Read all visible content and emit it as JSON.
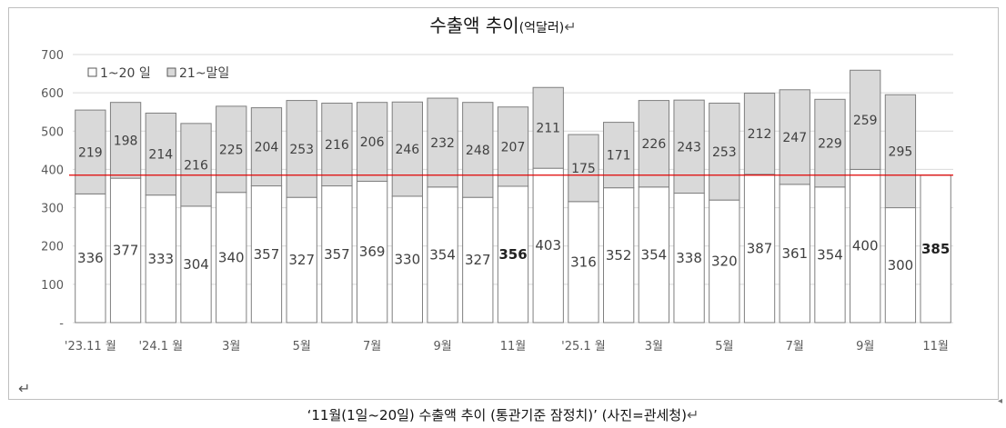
{
  "title": "수출액 추이",
  "title_unit": "(억달러)",
  "caption": "‘11월(1일~20일) 수출액 추이 (통관기준 잠정치)’ (사진=관세청)",
  "colors": {
    "bar_bottom": "#ffffff",
    "bar_top": "#d9d9d9",
    "bar_stroke": "#7f7f7f",
    "reference_line": "#e00000",
    "grid": "#d9d9d9"
  },
  "chart_data": {
    "type": "bar",
    "stacked": true,
    "title": "수출액 추이(억달러)",
    "categories": [
      "2023.11",
      "2023.12",
      "2024.1",
      "2024.2",
      "2024.3",
      "2024.4",
      "2024.5",
      "2024.6",
      "2024.7",
      "2024.8",
      "2024.9",
      "2024.10",
      "2024.11",
      "2024.12",
      "2025.1",
      "2025.2",
      "2025.3",
      "2025.4",
      "2025.5",
      "2025.6",
      "2025.7",
      "2025.8",
      "2025.9",
      "2025.10",
      "2025.11"
    ],
    "x_tick_labels": [
      "'23.11 월",
      "",
      "'24.1 월",
      "",
      "3월",
      "",
      "5월",
      "",
      "7월",
      "",
      "9월",
      "",
      "11월",
      "",
      "'25.1 월",
      "",
      "3월",
      "",
      "5월",
      "",
      "7월",
      "",
      "9월",
      "",
      "11월"
    ],
    "series": [
      {
        "name": "1~20 일",
        "values": [
          336,
          377,
          333,
          304,
          340,
          357,
          327,
          357,
          369,
          330,
          354,
          327,
          356,
          403,
          316,
          352,
          354,
          338,
          320,
          387,
          361,
          354,
          400,
          300,
          385
        ]
      },
      {
        "name": "21~말일",
        "values": [
          219,
          198,
          214,
          216,
          225,
          204,
          253,
          216,
          206,
          246,
          232,
          248,
          207,
          211,
          175,
          171,
          226,
          243,
          253,
          212,
          247,
          229,
          259,
          295,
          null
        ]
      }
    ],
    "bold_labels": [
      12,
      24
    ],
    "reference_line": 385,
    "y_ticks": [
      "-",
      "100",
      "200",
      "300",
      "400",
      "500",
      "600",
      "700"
    ],
    "ylim": [
      0,
      700
    ],
    "grid": true,
    "legend_position": "top-left"
  }
}
